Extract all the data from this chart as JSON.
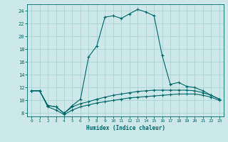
{
  "xlabel": "Humidex (Indice chaleur)",
  "bg_color": "#cce8e8",
  "grid_color": "#aad4d4",
  "line_color": "#006666",
  "xlim": [
    -0.5,
    23.5
  ],
  "ylim": [
    7.5,
    25.0
  ],
  "xticks": [
    0,
    1,
    2,
    3,
    4,
    5,
    6,
    7,
    8,
    9,
    10,
    11,
    12,
    13,
    14,
    15,
    16,
    17,
    18,
    19,
    20,
    21,
    22,
    23
  ],
  "yticks": [
    8,
    10,
    12,
    14,
    16,
    18,
    20,
    22,
    24
  ],
  "line1_x": [
    0,
    1,
    2,
    3,
    4,
    5,
    6,
    7,
    8,
    9,
    10,
    11,
    12,
    13,
    14,
    15,
    16,
    17,
    18,
    19,
    20,
    21,
    22,
    23
  ],
  "line1_y": [
    11.5,
    11.5,
    9.2,
    9.0,
    8.0,
    9.2,
    10.2,
    16.8,
    18.5,
    23.0,
    23.2,
    22.8,
    23.5,
    24.2,
    23.8,
    23.2,
    17.0,
    12.5,
    12.8,
    12.2,
    12.0,
    11.5,
    10.8,
    10.2
  ],
  "line2_x": [
    0,
    1,
    2,
    3,
    4,
    5,
    6,
    7,
    8,
    9,
    10,
    11,
    12,
    13,
    14,
    15,
    16,
    17,
    18,
    19,
    20,
    21,
    22,
    23
  ],
  "line2_y": [
    11.5,
    11.5,
    9.2,
    9.0,
    8.0,
    9.0,
    9.5,
    9.8,
    10.2,
    10.5,
    10.8,
    11.0,
    11.2,
    11.4,
    11.5,
    11.6,
    11.6,
    11.6,
    11.6,
    11.6,
    11.5,
    11.2,
    10.8,
    10.2
  ],
  "line3_x": [
    0,
    1,
    2,
    3,
    4,
    5,
    6,
    7,
    8,
    9,
    10,
    11,
    12,
    13,
    14,
    15,
    16,
    17,
    18,
    19,
    20,
    21,
    22,
    23
  ],
  "line3_y": [
    11.5,
    11.5,
    9.0,
    8.5,
    7.8,
    8.5,
    9.0,
    9.3,
    9.6,
    9.8,
    10.0,
    10.2,
    10.4,
    10.5,
    10.6,
    10.7,
    10.8,
    10.9,
    11.0,
    11.0,
    11.0,
    10.8,
    10.5,
    10.0
  ]
}
